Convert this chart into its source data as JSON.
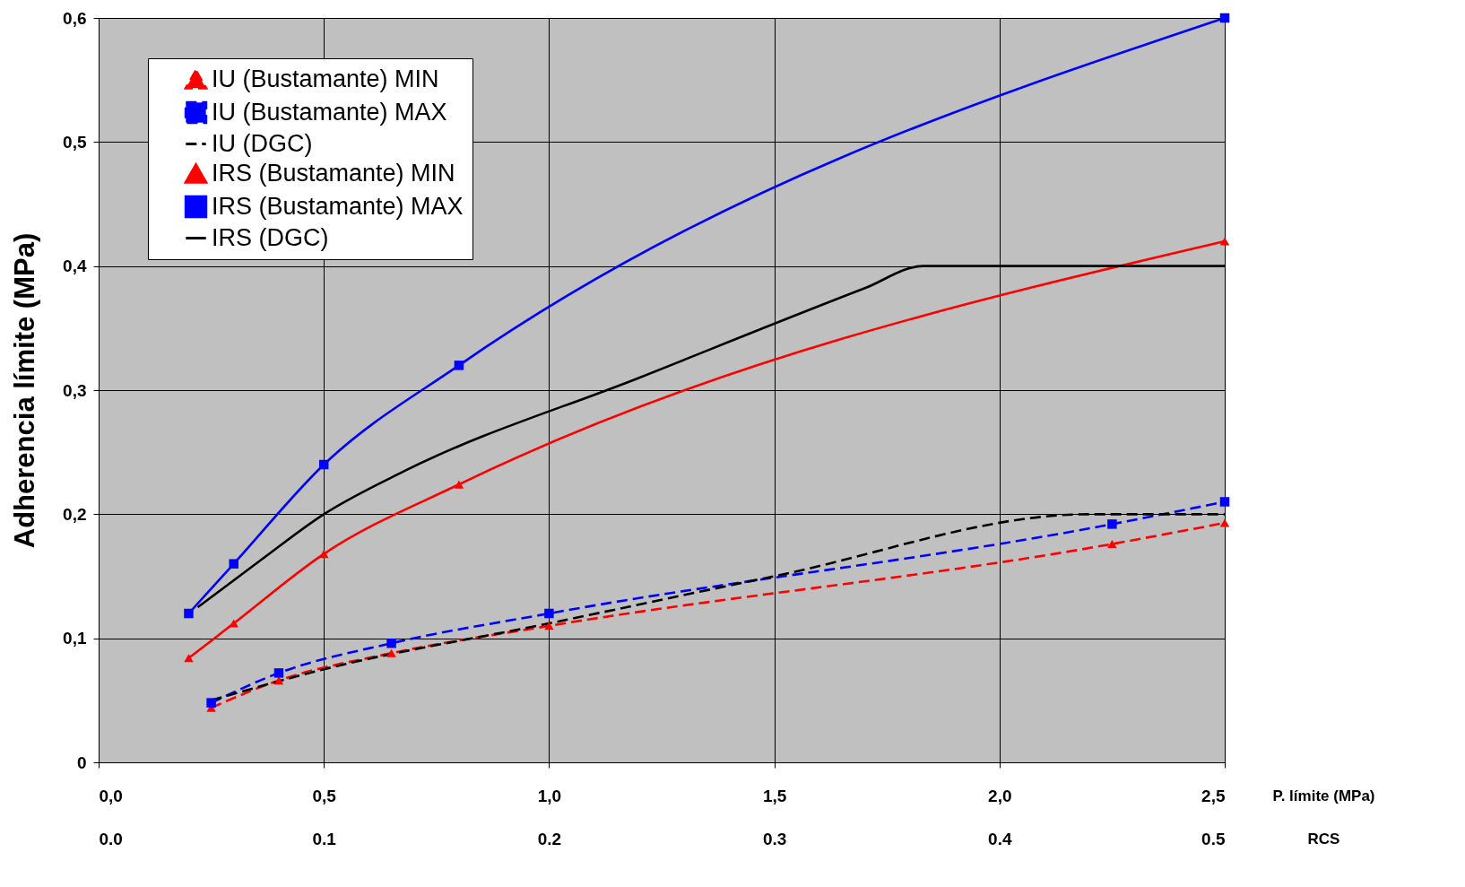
{
  "chart_data": {
    "type": "line",
    "xlabel": "P. límite (MPa)",
    "x2label": "RCS",
    "ylabel": "Adherencia límite (MPa)",
    "xlim": [
      0,
      2.5
    ],
    "xticks": [
      {
        "value": 0,
        "label": "0,0"
      },
      {
        "value": 0.5,
        "label": "0,5"
      },
      {
        "value": 1,
        "label": "1,0"
      },
      {
        "value": 1.5,
        "label": "1,5"
      },
      {
        "value": 2,
        "label": "2,0"
      },
      {
        "value": 2.5,
        "label": "2,5"
      }
    ],
    "x2lim": [
      0,
      0.5
    ],
    "x2ticks": [
      {
        "value": 0,
        "label": "0.0"
      },
      {
        "value": 0.1,
        "label": "0.1"
      },
      {
        "value": 0.2,
        "label": "0.2"
      },
      {
        "value": 0.3,
        "label": "0.3"
      },
      {
        "value": 0.4,
        "label": "0.4"
      },
      {
        "value": 0.5,
        "label": "0.5"
      }
    ],
    "ylim": [
      0,
      0.6
    ],
    "yticks": [
      0,
      {
        "value": 0.1,
        "label": "0,1"
      },
      {
        "value": 0.2,
        "label": "0,2"
      },
      {
        "value": 0.3,
        "label": "0,3"
      },
      {
        "value": 0.4,
        "label": "0,4"
      },
      {
        "value": 0.5,
        "label": "0,5"
      },
      {
        "value": 0.6,
        "label": "0,6"
      }
    ],
    "grid": true,
    "legend": "top left",
    "series": [
      {
        "name": "IU (Bustamante) MIN",
        "color": "#ff0000",
        "line_style": "dashed",
        "marker": "triangle",
        "x": [
          0.25,
          0.4,
          0.65,
          1.0,
          2.25,
          2.5
        ],
        "values": [
          0.044,
          0.066,
          0.088,
          0.11,
          0.176,
          0.193
        ]
      },
      {
        "name": "IU (Bustamante) MAX",
        "color": "#0000ff",
        "line_style": "dashed",
        "marker": "square",
        "x": [
          0.25,
          0.4,
          0.65,
          1.0,
          2.25,
          2.5
        ],
        "values": [
          0.048,
          0.072,
          0.096,
          0.12,
          0.192,
          0.21
        ]
      },
      {
        "name": "IU (DGC)",
        "color": "#000000",
        "line_style": "dashed",
        "marker": "none",
        "x": [
          0.25,
          0.5,
          1.0,
          1.5,
          2.2,
          2.5
        ],
        "values": [
          0.05,
          0.075,
          0.112,
          0.15,
          0.2,
          0.2
        ]
      },
      {
        "name": "IRS (Bustamante) MIN",
        "color": "#ff0000",
        "line_style": "solid",
        "marker": "triangle",
        "x": [
          0.2,
          0.3,
          0.5,
          0.8,
          2.5
        ],
        "values": [
          0.084,
          0.112,
          0.168,
          0.224,
          0.42
        ]
      },
      {
        "name": "IRS (Bustamante) MAX",
        "color": "#0000ff",
        "line_style": "solid",
        "marker": "square",
        "x": [
          0.2,
          0.3,
          0.5,
          0.8,
          2.5
        ],
        "values": [
          0.12,
          0.16,
          0.24,
          0.32,
          0.6
        ]
      },
      {
        "name": "IRS (DGC)",
        "color": "#000000",
        "line_style": "solid",
        "marker": "none",
        "x": [
          0.22,
          0.36,
          0.5,
          0.68,
          1.2,
          1.7,
          1.83,
          2.5
        ],
        "values": [
          0.125,
          0.163,
          0.2,
          0.235,
          0.31,
          0.382,
          0.4,
          0.4
        ]
      }
    ]
  }
}
